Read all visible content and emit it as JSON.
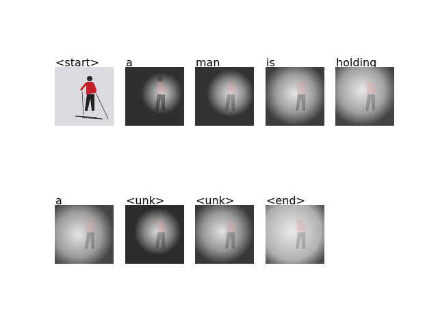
{
  "figure": {
    "panels": [
      {
        "word": "<start>",
        "kind": "original"
      },
      {
        "word": "a",
        "kind": "attention"
      },
      {
        "word": "man",
        "kind": "attention"
      },
      {
        "word": "is",
        "kind": "attention"
      },
      {
        "word": "holding",
        "kind": "attention"
      },
      {
        "word": "a",
        "kind": "attention"
      },
      {
        "word": "<unk>",
        "kind": "attention"
      },
      {
        "word": "<unk>",
        "kind": "attention"
      },
      {
        "word": "<end>",
        "kind": "attention"
      }
    ],
    "colors": {
      "background": "#ffffff",
      "attention_dark": "#2a2a2a",
      "attention_light": "#e6e6e6",
      "jacket": "#c8202a",
      "pants": "#202020"
    }
  }
}
